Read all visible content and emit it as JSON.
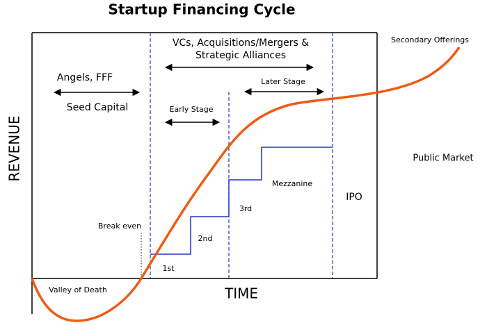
{
  "title": "Startup Financing Cycle",
  "axes": {
    "y_label": "REVENUE",
    "x_label": "TIME"
  },
  "stages": {
    "angels": "Angels, FFF",
    "seed": "Seed Capital",
    "vcs_line1": "VCs, Acquisitions/Mergers &",
    "vcs_line2": "Strategic Alliances",
    "early": "Early Stage",
    "later": "Later Stage",
    "secondary": "Secondary Offerings",
    "public": "Public Market"
  },
  "rounds": {
    "first": "1st",
    "second": "2nd",
    "third": "3rd",
    "mezzanine": "Mezzanine",
    "ipo": "IPO"
  },
  "annotations": {
    "break_even": "Break even",
    "valley": "Valley of Death"
  }
}
